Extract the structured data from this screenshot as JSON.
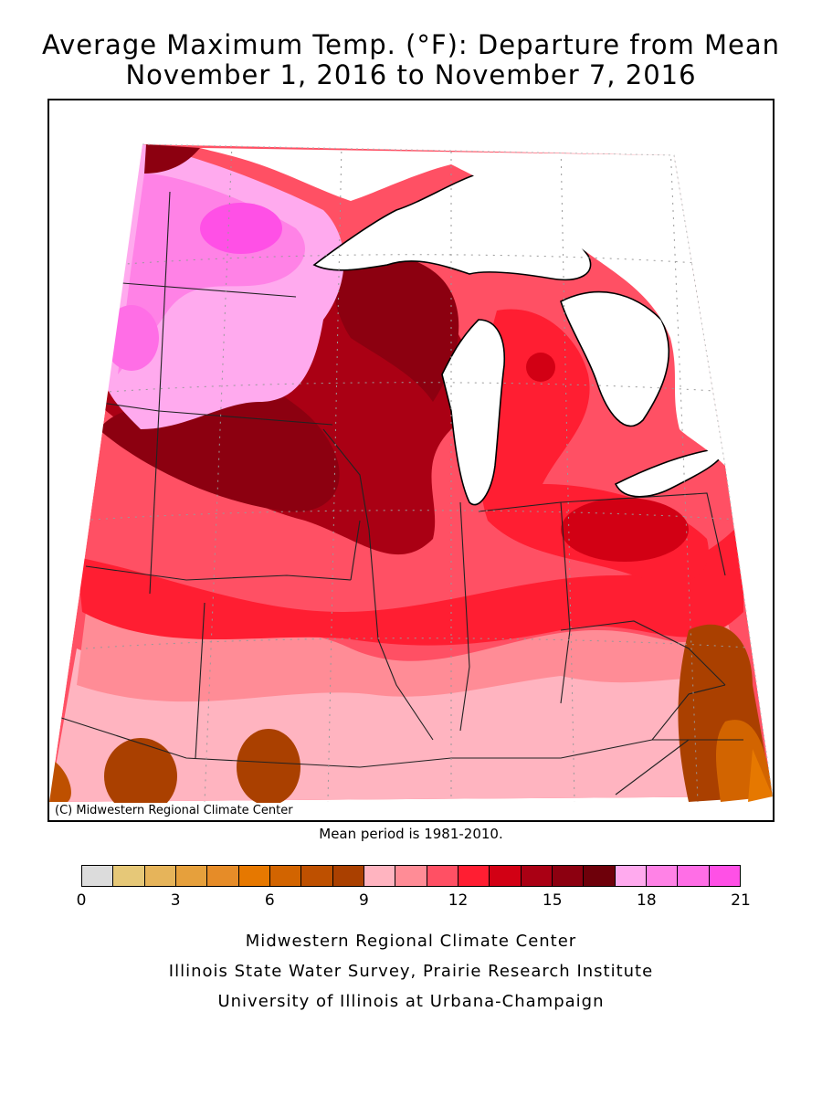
{
  "title_line1": "Average Maximum Temp. (°F): Departure from Mean",
  "title_line2": "November 1, 2016 to November 7, 2016",
  "credit": "(C) Midwestern Regional Climate Center",
  "mean_period": "Mean period is 1981-2010.",
  "legend": {
    "colors": [
      "#dcdcdc",
      "#e6c878",
      "#e6b45a",
      "#e6a03c",
      "#e68c28",
      "#e67800",
      "#d26400",
      "#be5000",
      "#aa4000",
      "#ffb4c0",
      "#ff8c96",
      "#ff5064",
      "#ff1e32",
      "#d20014",
      "#aa0014",
      "#8c0010",
      "#6e000a",
      "#ffaaee",
      "#ff82e6",
      "#ff6ee6",
      "#ff50e6"
    ],
    "tick_labels": [
      "0",
      "3",
      "6",
      "9",
      "12",
      "15",
      "18",
      "21"
    ],
    "min": 0,
    "max": 21
  },
  "footer": {
    "line1": "Midwestern Regional Climate Center",
    "line2": "Illinois State Water Survey, Prairie Research Institute",
    "line3": "University of Illinois at Urbana-Champaign"
  }
}
